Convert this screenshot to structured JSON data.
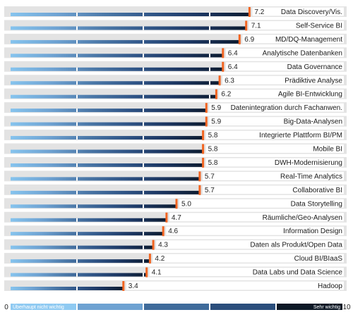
{
  "chart_data": {
    "type": "bar",
    "orientation": "horizontal",
    "categories": [
      "Data Discovery/Vis.",
      "Self-Service BI",
      "MD/DQ-Management",
      "Analytische Datenbanken",
      "Data Governance",
      "Prädiktive Analyse",
      "Agile BI-Entwicklung",
      "Datenintegration durch Fachanwen.",
      "Big-Data-Analysen",
      "Integrierte Plattform BI/PM",
      "Mobile BI",
      "DWH-Modernisierung",
      "Real-Time Analytics",
      "Collaborative BI",
      "Data Storytelling",
      "Räumliche/Geo-Analysen",
      "Information Design",
      "Daten als Produkt/Open Data",
      "Cloud BI/BIaaS",
      "Data Labs und Data Science",
      "Hadoop"
    ],
    "values": [
      7.2,
      7.1,
      6.9,
      6.4,
      6.4,
      6.3,
      6.2,
      5.9,
      5.9,
      5.8,
      5.8,
      5.8,
      5.7,
      5.7,
      5.0,
      4.7,
      4.6,
      4.3,
      4.2,
      4.1,
      3.4
    ],
    "value_labels": [
      "7.2",
      "7.1",
      "6.9",
      "6.4",
      "6.4",
      "6.3",
      "6.2",
      "5.9",
      "5.9",
      "5.8",
      "5.8",
      "5.8",
      "5.7",
      "5.7",
      "5.0",
      "4.7",
      "4.6",
      "4.3",
      "4.2",
      "4.1",
      "3.4"
    ],
    "xlim": [
      0,
      10
    ],
    "x_min_label": "0",
    "x_max_label": "10",
    "scale_low_label": "Überhaupt nicht wichtig",
    "scale_high_label": "Sehr wichtig",
    "gridlines": true,
    "colors": {
      "row_band": "#e3e3e3",
      "gradient": [
        "#86c4ee",
        "#6ea2d2",
        "#4a77a7",
        "#2f5486",
        "#1b3560",
        "#0d1c30"
      ],
      "marker": "#f26522"
    }
  }
}
